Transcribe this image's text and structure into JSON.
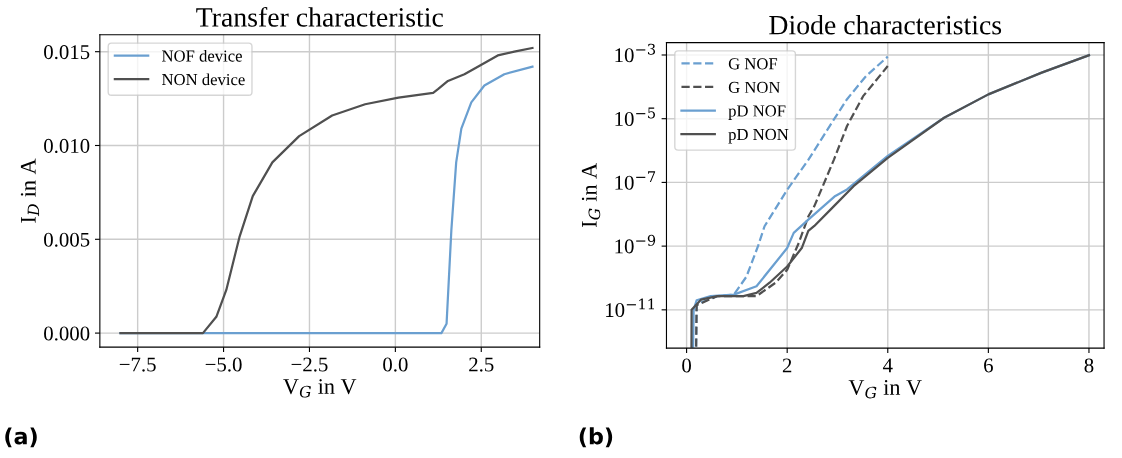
{
  "chart_data": [
    {
      "type": "line",
      "title": "Transfer characteristic",
      "xlabel": "V$_{G}$ in V",
      "ylabel": "I$_{D}$ in A",
      "annotations": [
        "(a)"
      ],
      "xlim": [
        -8.6,
        4.2
      ],
      "ylim": [
        -0.00075,
        0.0159
      ],
      "xticks": [
        {
          "value": -7.5,
          "label": "−7.5"
        },
        {
          "value": -5.0,
          "label": "−5.0"
        },
        {
          "value": -2.5,
          "label": "−2.5"
        },
        {
          "value": 0.0,
          "label": "0.0"
        },
        {
          "value": 2.5,
          "label": "2.5"
        }
      ],
      "yticks": [
        {
          "value": 0,
          "label": "0.000"
        },
        {
          "value": 0.005,
          "label": "0.005"
        },
        {
          "value": 0.01,
          "label": "0.010"
        },
        {
          "value": 0.015,
          "label": "0.015"
        }
      ],
      "grid": true,
      "legend": "top left",
      "line_style": "solid",
      "marker": "none",
      "series": [
        {
          "name": "NOF device",
          "color": "#6a9fd0",
          "x": [
            -8.0,
            1.34,
            1.49,
            1.63,
            1.77,
            1.92,
            2.21,
            2.59,
            3.17,
            3.99
          ],
          "values": [
            0,
            0,
            0.0005,
            0.0055,
            0.0091,
            0.0109,
            0.0123,
            0.0132,
            0.0138,
            0.0142
          ]
        },
        {
          "name": "NON device",
          "color": "#505050",
          "x": [
            -8.0,
            -5.6,
            -5.21,
            -4.92,
            -4.54,
            -4.15,
            -3.58,
            -2.8,
            -1.84,
            -0.88,
            0.09,
            1.1,
            1.24,
            1.53,
            2.01,
            2.4,
            2.98,
            3.46,
            3.99
          ],
          "values": [
            0,
            0,
            0.00087,
            0.0023,
            0.0051,
            0.0073,
            0.0091,
            0.0105,
            0.0116,
            0.0122,
            0.01255,
            0.0128,
            0.013,
            0.01344,
            0.0138,
            0.0142,
            0.0148,
            0.015,
            0.0152
          ]
        }
      ]
    },
    {
      "type": "line",
      "title": "Diode characteristics",
      "xlabel": "V$_{G}$ in V",
      "ylabel": "I$_{G}$ in A",
      "annotations": [
        "(b)"
      ],
      "log": "y",
      "xlim": [
        -0.4,
        8.3
      ],
      "ylim": [
        6.3e-13,
        0.00245
      ],
      "xticks": [
        0,
        2,
        4,
        6,
        8
      ],
      "yticks": [
        {
          "value": 0.001,
          "label": "10$^{−3}$"
        },
        {
          "value": 1e-05,
          "label": "10$^{−5}$"
        },
        {
          "value": 1e-07,
          "label": "10$^{−7}$"
        },
        {
          "value": 1e-09,
          "label": "10$^{−9}$"
        },
        {
          "value": 1e-11,
          "label": "10$^{−11}$"
        }
      ],
      "grid": true,
      "legend": "top left",
      "marker": "none",
      "series": [
        {
          "name": "G NOF",
          "color": "#6a9fd0",
          "line_style": "dashed",
          "x": [
            0.19,
            0.2,
            0.61,
            0.94,
            1.19,
            1.42,
            1.55,
            2.0,
            2.42,
            2.93,
            3.19,
            3.57,
            4.0
          ],
          "values": [
            7e-13,
            1.5e-11,
            2.7e-11,
            3e-11,
            1.1e-10,
            1e-09,
            4.2e-09,
            5.9e-08,
            5.1e-07,
            9.5e-06,
            4.1e-05,
            0.00022,
            0.00089
          ]
        },
        {
          "name": "G NON",
          "color": "#505050",
          "line_style": "dashed",
          "x": [
            0.19,
            0.2,
            0.61,
            1.39,
            1.77,
            2.0,
            2.23,
            2.42,
            2.54,
            2.93,
            3.19,
            3.51,
            4.0
          ],
          "values": [
            7e-13,
            1.4e-11,
            2.7e-11,
            2.7e-11,
            7.1e-11,
            1.8e-10,
            1.26e-09,
            8.5e-09,
            1.8e-08,
            5.2e-07,
            5.9e-06,
            5.1e-05,
            0.00045
          ]
        },
        {
          "name": "pD NOF",
          "color": "#6a9fd0",
          "line_style": "solid",
          "x": [
            0.13,
            0.14,
            0.2,
            0.48,
            0.94,
            1.39,
            2.0,
            2.13,
            2.42,
            2.94,
            3.19,
            4.0,
            5.12,
            6.0,
            7.06,
            8.0
          ],
          "values": [
            7e-13,
            1e-11,
            2e-11,
            2.7e-11,
            3e-11,
            5.5e-11,
            8.7e-10,
            2.6e-09,
            6.8e-09,
            3.6e-08,
            6e-08,
            6.8e-07,
            1.07e-05,
            5.8e-05,
            0.00028,
            0.00098
          ]
        },
        {
          "name": "pD NON",
          "color": "#505050",
          "line_style": "solid",
          "x": [
            0.097,
            0.1,
            0.29,
            0.61,
            1.13,
            1.39,
            1.65,
            2.0,
            2.29,
            2.42,
            2.54,
            2.93,
            3.32,
            4.0,
            5.12,
            6.0,
            7.06,
            8.0
          ],
          "values": [
            7e-13,
            1e-11,
            2.1e-11,
            2.7e-11,
            2.7e-11,
            3.4e-11,
            7.1e-11,
            2.3e-10,
            8.7e-10,
            3e-09,
            4.3e-09,
            1.8e-08,
            7.6e-08,
            5.9e-07,
            1.07e-05,
            5.8e-05,
            0.00028,
            0.00098
          ]
        }
      ]
    }
  ]
}
